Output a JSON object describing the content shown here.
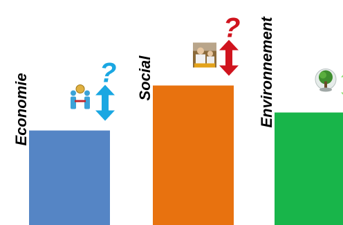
{
  "chart_data": {
    "type": "bar",
    "title": "",
    "xlabel": "",
    "ylabel": "",
    "categories": [
      "Economie",
      "Social",
      "Environnement"
    ],
    "values": [
      42,
      62,
      50
    ],
    "ylim": [
      0,
      100
    ],
    "grid": false,
    "legend": "none",
    "colors": [
      "#5585C5",
      "#E8720F",
      "#18B54A"
    ],
    "markers": [
      {
        "category": "Economie",
        "symbol": "?",
        "arrow": "double-vertical",
        "color": "#1AA7E2",
        "icon": "people-coin-icon"
      },
      {
        "category": "Social",
        "symbol": "?",
        "arrow": "double-vertical",
        "color": "#D0141E",
        "icon": "food-workers-photo-icon"
      },
      {
        "category": "Environnement",
        "symbol": "?",
        "arrow": "double-vertical",
        "color": "#8CE070",
        "icon": "tree-globe-icon"
      }
    ]
  }
}
